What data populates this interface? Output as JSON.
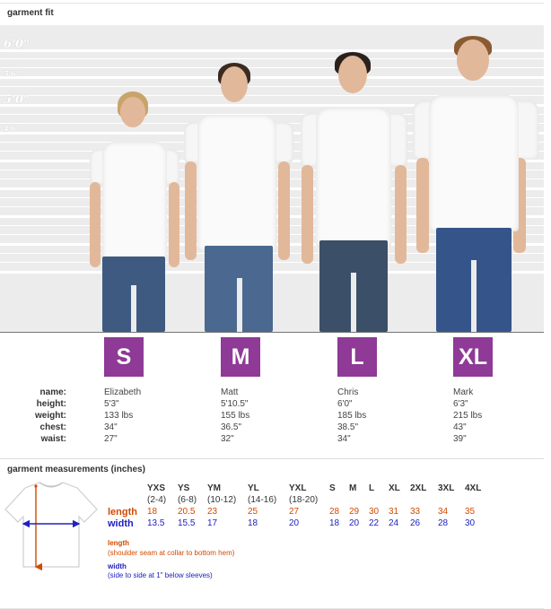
{
  "sections": {
    "fit_title": "garment fit",
    "measurements_title": "garment measurements (inches)"
  },
  "height_labels": [
    "6'0\"",
    "5'6\"",
    "5'0\"",
    "4'6\""
  ],
  "colors": {
    "badge": "#8e3a96",
    "length": "#d24a00",
    "width": "#2020c0",
    "chart_bg": "#ececec"
  },
  "sizes": [
    "S",
    "M",
    "L",
    "XL"
  ],
  "stat_labels": [
    "name:",
    "height:",
    "weight:",
    "chest:",
    "waist:"
  ],
  "models": [
    {
      "name": "Elizabeth",
      "height": "5'3\"",
      "weight": "133 lbs",
      "chest": "34\"",
      "waist": "27\""
    },
    {
      "name": "Matt",
      "height": "5'10.5\"",
      "weight": "155 lbs",
      "chest": "36.5\"",
      "waist": "32\""
    },
    {
      "name": "Chris",
      "height": "6'0\"",
      "weight": "185 lbs",
      "chest": "38.5\"",
      "waist": "34\""
    },
    {
      "name": "Mark",
      "height": "6'3\"",
      "weight": "215 lbs",
      "chest": "43\"",
      "waist": "39\""
    }
  ],
  "measurements": {
    "columns": [
      {
        "size": "YXS",
        "range": "(2-4)",
        "length": "18",
        "width": "13.5"
      },
      {
        "size": "YS",
        "range": "(6-8)",
        "length": "20.5",
        "width": "15.5"
      },
      {
        "size": "YM",
        "range": "(10-12)",
        "length": "23",
        "width": "17"
      },
      {
        "size": "YL",
        "range": "(14-16)",
        "length": "25",
        "width": "18"
      },
      {
        "size": "YXL",
        "range": "(18-20)",
        "length": "27",
        "width": "20"
      },
      {
        "size": "S",
        "range": "",
        "length": "28",
        "width": "18"
      },
      {
        "size": "M",
        "range": "",
        "length": "29",
        "width": "20"
      },
      {
        "size": "L",
        "range": "",
        "length": "30",
        "width": "22"
      },
      {
        "size": "XL",
        "range": "",
        "length": "31",
        "width": "24"
      },
      {
        "size": "2XL",
        "range": "",
        "length": "33",
        "width": "26"
      },
      {
        "size": "3XL",
        "range": "",
        "length": "34",
        "width": "28"
      },
      {
        "size": "4XL",
        "range": "",
        "length": "35",
        "width": "30"
      }
    ],
    "length_label": "length",
    "width_label": "width",
    "length_note_title": "length",
    "length_note": "(shoulder seam at collar to bottom hem)",
    "width_note_title": "width",
    "width_note": "(side to side at 1\" below sleeves)"
  }
}
